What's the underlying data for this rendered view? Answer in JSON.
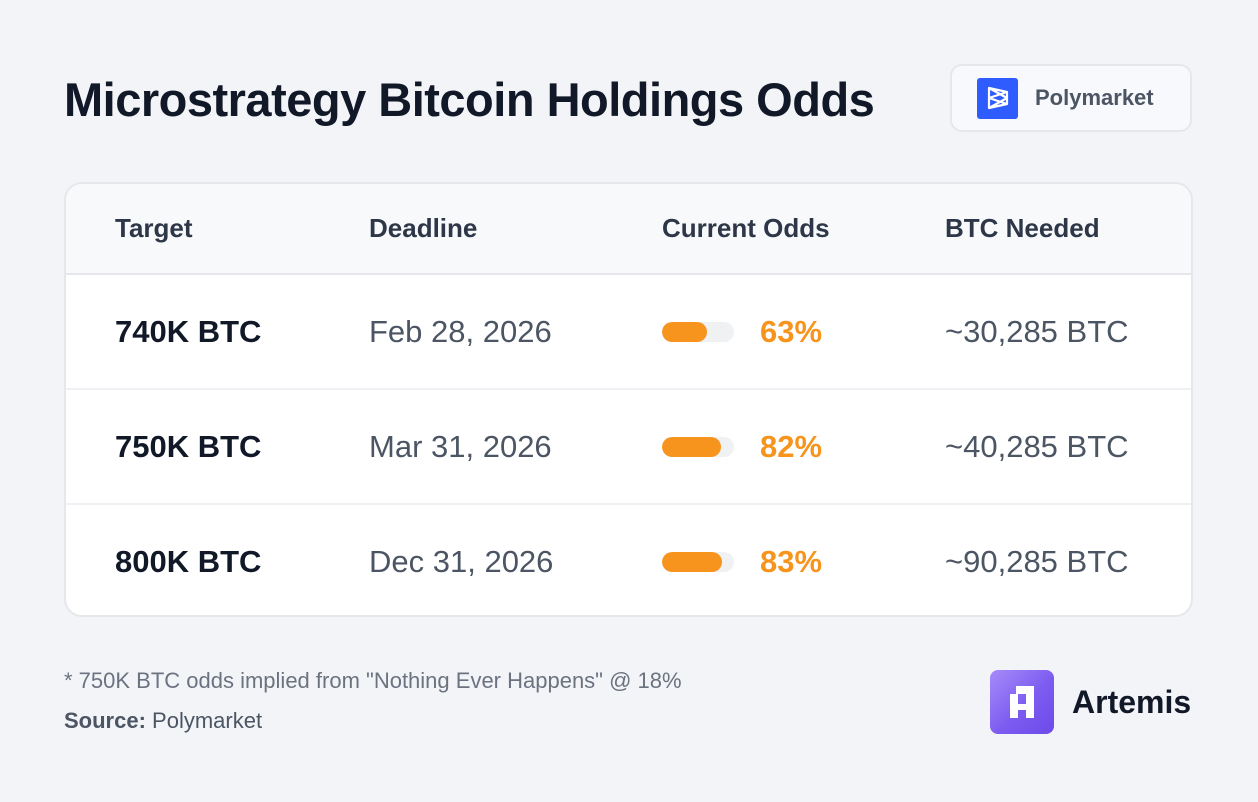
{
  "title": "Microstrategy Bitcoin Holdings Odds",
  "badge": {
    "label": "Polymarket"
  },
  "table": {
    "headers": {
      "target": "Target",
      "deadline": "Deadline",
      "odds": "Current Odds",
      "needed": "BTC Needed"
    },
    "rows": [
      {
        "target": "740K BTC",
        "deadline": "Feb 28, 2026",
        "odds": "63%",
        "odds_fraction": 0.63,
        "needed": "~30,285 BTC"
      },
      {
        "target": "750K BTC",
        "deadline": "Mar 31, 2026",
        "odds": "82%",
        "odds_fraction": 0.82,
        "needed": "~40,285 BTC"
      },
      {
        "target": "800K BTC",
        "deadline": "Dec 31, 2026",
        "odds": "83%",
        "odds_fraction": 0.83,
        "needed": "~90,285 BTC"
      }
    ]
  },
  "footnote": "* 750K BTC odds implied from \"Nothing Ever Happens\" @ 18%",
  "source": {
    "label": "Source:",
    "value": "Polymarket"
  },
  "brand": {
    "name": "Artemis"
  },
  "icons": {
    "badge_logo": "polymarket-logo-icon",
    "brand_logo": "artemis-logo-icon"
  },
  "colors": {
    "accent_orange": "#f7941d",
    "polymarket_blue": "#2e5cff",
    "artemis_purple": "#7c5cf0"
  }
}
